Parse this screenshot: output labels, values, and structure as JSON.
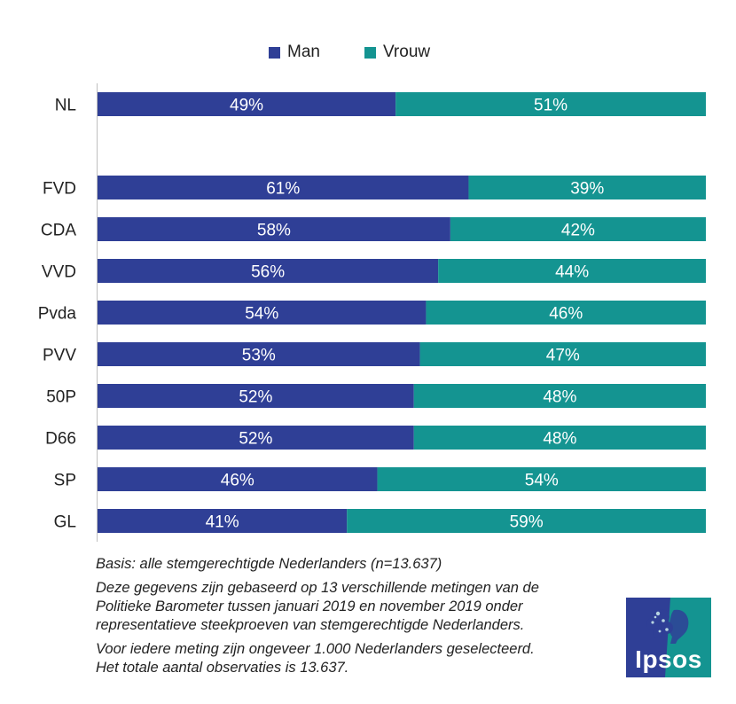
{
  "chart_data": {
    "type": "bar",
    "orientation": "horizontal",
    "stacked": true,
    "categories": [
      "NL",
      "",
      "FVD",
      "CDA",
      "VVD",
      "Pvda",
      "PVV",
      "50P",
      "D66",
      "SP",
      "GL"
    ],
    "series": [
      {
        "name": "Man",
        "color": "#2f3f96",
        "values": [
          49,
          null,
          61,
          58,
          56,
          54,
          53,
          52,
          52,
          46,
          41
        ]
      },
      {
        "name": "Vrouw",
        "color": "#149491",
        "values": [
          51,
          null,
          39,
          42,
          44,
          46,
          47,
          48,
          48,
          54,
          59
        ]
      }
    ],
    "value_suffix": "%",
    "xlim": [
      0,
      100
    ],
    "legend": "top-center",
    "grid": false
  },
  "notes": {
    "basis": "Basis: alle stemgerechtigde Nederlanders (n=13.637)",
    "data_line1": "Deze gegevens zijn gebaseerd op 13 verschillende metingen van de",
    "data_line2": "Politieke Barometer tussen januari 2019 en november 2019 onder",
    "data_line3": "representatieve steekproeven van stemgerechtigde Nederlanders.",
    "meting_line1": "Voor iedere meting zijn ongeveer 1.000 Nederlanders geselecteerd.",
    "meting_line2": "Het totale aantal observaties is 13.637."
  },
  "logo": {
    "text": "Ipsos",
    "color_blue": "#2f3f96",
    "color_teal": "#149491"
  }
}
